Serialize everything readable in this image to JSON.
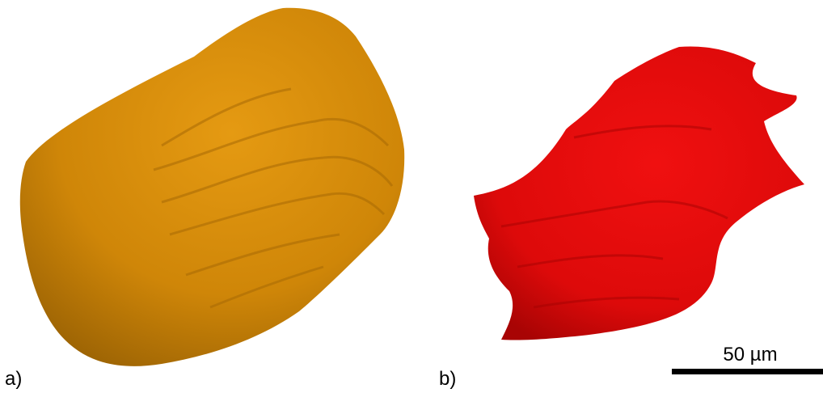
{
  "panels": [
    {
      "label": "a)"
    },
    {
      "label": "b)"
    }
  ],
  "scale_bar": {
    "label": "50 µm"
  }
}
